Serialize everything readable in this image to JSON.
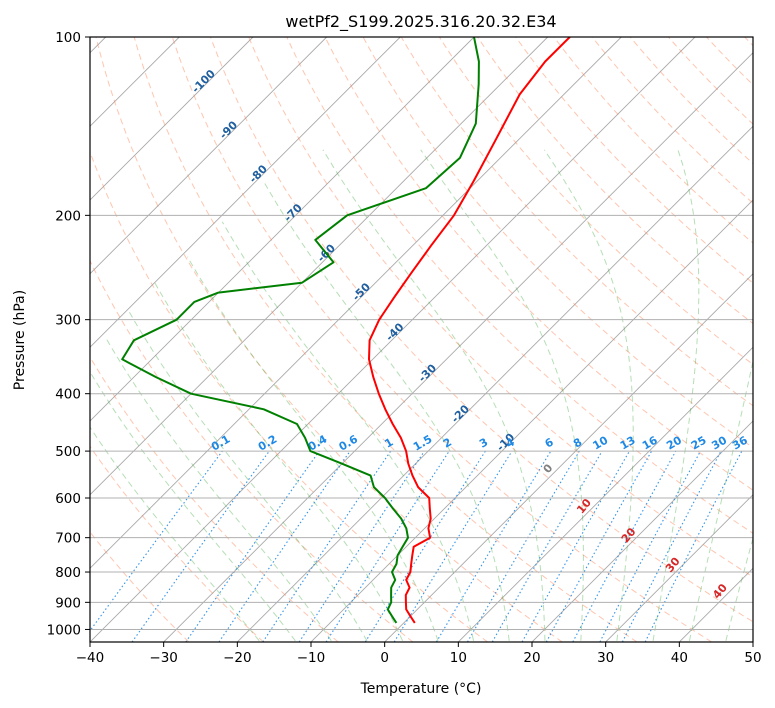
{
  "chart_data": {
    "type": "line",
    "subtype": "skew-t log-p diagram",
    "title": "wetPf2_S199.2025.316.20.32.E34",
    "xlabel": "Temperature (°C)",
    "ylabel": "Pressure (hPa)",
    "xlim": [
      -40,
      50
    ],
    "ylim": [
      1050,
      100
    ],
    "y_scale": "log",
    "x_ticks": [
      -40,
      -30,
      -20,
      -10,
      0,
      10,
      20,
      30,
      40,
      50
    ],
    "y_ticks": [
      1000,
      900,
      800,
      700,
      600,
      500,
      400,
      300,
      200,
      100
    ],
    "grid": true,
    "colors": {
      "temperature": "#ff0000",
      "dewpoint": "#008000",
      "dry_adiabat": "#ff7f50",
      "moist_adiabat": "#2ca02c",
      "mixing_ratio": "#1e88e5",
      "isotherm": "#9a9a9a",
      "label_isotherm": "#1f5f9f",
      "label_wetbulb_warm": "#d62728",
      "label_wetbulb_zero": "#808080"
    },
    "series": [
      {
        "name": "Temperature",
        "pressure": [
          975,
          950,
          925,
          900,
          875,
          850,
          825,
          800,
          775,
          750,
          725,
          700,
          675,
          650,
          625,
          600,
          575,
          550,
          525,
          500,
          475,
          450,
          425,
          400,
          375,
          350,
          325,
          300,
          275,
          250,
          225,
          200,
          175,
          150,
          125,
          110,
          100
        ],
        "values": [
          1.5,
          0,
          -1.5,
          -2.5,
          -3.5,
          -4.0,
          -5.5,
          -6.0,
          -7.0,
          -8.0,
          -9.0,
          -8.0,
          -9.5,
          -10.5,
          -12.0,
          -13.5,
          -16.5,
          -18.8,
          -21.0,
          -23.0,
          -25.5,
          -28.5,
          -31.5,
          -34.5,
          -37.5,
          -40.5,
          -43.0,
          -44.5,
          -45.5,
          -46.5,
          -47.5,
          -48.5,
          -50.5,
          -53.0,
          -56.0,
          -57.0,
          -57.0
        ]
      },
      {
        "name": "Dewpoint",
        "pressure": [
          975,
          950,
          925,
          900,
          875,
          850,
          825,
          800,
          775,
          750,
          725,
          700,
          675,
          650,
          625,
          600,
          575,
          550,
          525,
          500,
          475,
          450,
          425,
          400,
          375,
          350,
          325,
          300,
          280,
          270,
          260,
          240,
          220,
          200,
          180,
          160,
          140,
          120,
          110,
          100
        ],
        "values": [
          -1.0,
          -2.5,
          -4.0,
          -4.5,
          -5.5,
          -6.5,
          -7.0,
          -8.5,
          -9.0,
          -10.0,
          -10.5,
          -11.0,
          -12.5,
          -14.5,
          -17.0,
          -19.5,
          -22.5,
          -24.5,
          -30.0,
          -36.0,
          -38.5,
          -41.5,
          -48.0,
          -60.0,
          -67.0,
          -74.0,
          -75.0,
          -72.0,
          -72.0,
          -70.0,
          -60.0,
          -58.5,
          -64.0,
          -63.0,
          -56.0,
          -55.5,
          -58.0,
          -63.0,
          -66.0,
          -70.0
        ]
      }
    ],
    "isotherm_labels": [
      "-100",
      "-90",
      "-80",
      "-70",
      "-60",
      "-50",
      "-40",
      "-30",
      "-20",
      "-10"
    ],
    "wetbulb_labels": [
      "0",
      "10",
      "20",
      "30",
      "40"
    ],
    "mixing_ratio_labels": [
      "0.1",
      "0.2",
      "0.4",
      "0.6",
      "1",
      "1.5",
      "2",
      "3",
      "4",
      "6",
      "8",
      "10",
      "13",
      "16",
      "20",
      "25",
      "30",
      "36"
    ]
  }
}
